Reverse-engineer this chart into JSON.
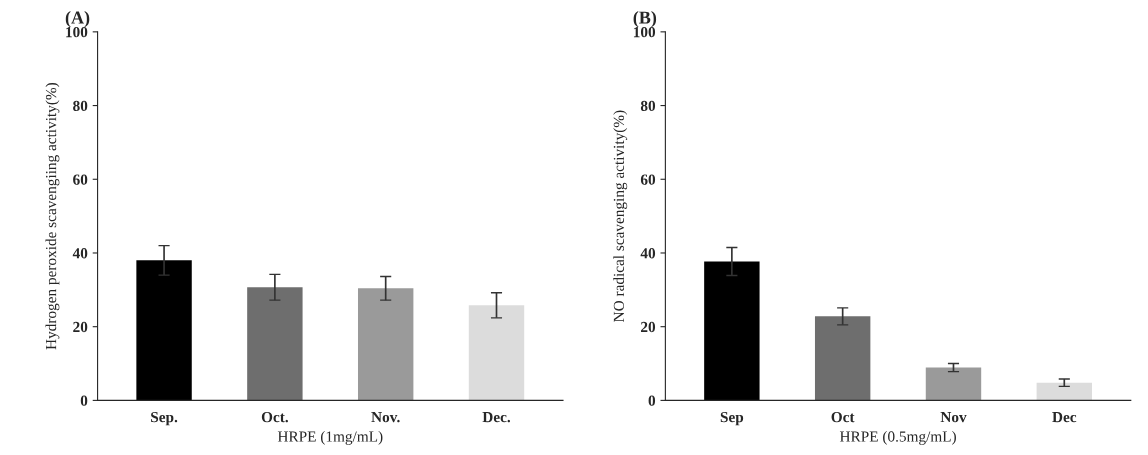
{
  "chart_data": [
    {
      "type": "bar",
      "title": "(A)",
      "xlabel": "HRPE (1mg/mL)",
      "ylabel": "Hydrogen peroxide scavengiing activity(%)",
      "categories": [
        "Sep.",
        "Oct.",
        "Nov.",
        "Dec."
      ],
      "values": [
        38,
        30.7,
        30.4,
        25.8
      ],
      "errors": [
        4,
        3.5,
        3.2,
        3.4
      ],
      "colors": [
        "#000000",
        "#6e6e6e",
        "#9a9a9a",
        "#dcdcdc"
      ],
      "ylim": [
        0,
        100
      ],
      "yticks": [
        0,
        20,
        40,
        60,
        80,
        100
      ],
      "grid": false,
      "legend": false
    },
    {
      "type": "bar",
      "title": "(B)",
      "xlabel": "HRPE (0.5mg/mL)",
      "ylabel": "NO radical scavenging activity(%)",
      "categories": [
        "Sep",
        "Oct",
        "Nov",
        "Dec"
      ],
      "values": [
        37.7,
        22.8,
        8.9,
        4.8
      ],
      "errors": [
        3.8,
        2.3,
        1.1,
        1
      ],
      "colors": [
        "#000000",
        "#6e6e6e",
        "#9a9a9a",
        "#dcdcdc"
      ],
      "ylim": [
        0,
        100
      ],
      "yticks": [
        0,
        20,
        40,
        60,
        80,
        100
      ],
      "grid": false,
      "legend": false
    }
  ]
}
